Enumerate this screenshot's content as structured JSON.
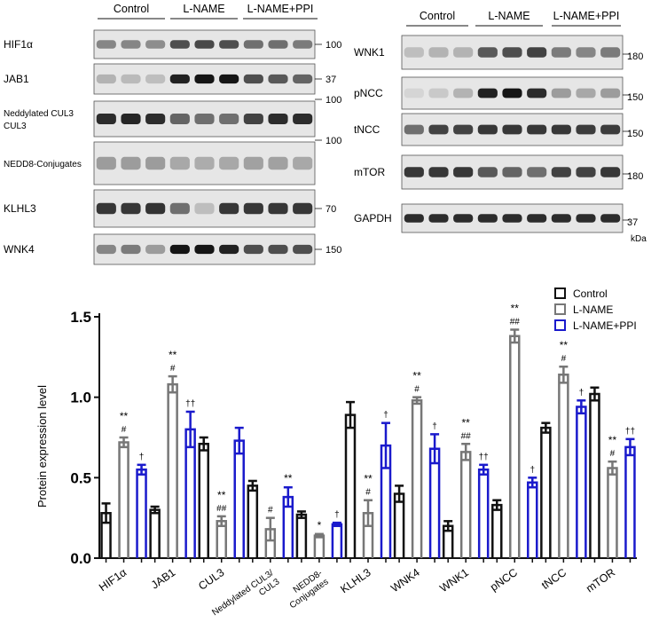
{
  "blots": {
    "left": {
      "groups": [
        "Control",
        "L-NAME",
        "L-NAME+PPI"
      ],
      "rows": [
        {
          "label": "HIF1α",
          "kda": "100",
          "intensity": [
            0.45,
            0.45,
            0.42,
            0.7,
            0.72,
            0.7,
            0.55,
            0.55,
            0.5
          ]
        },
        {
          "label": "JAB1",
          "kda": "37",
          "intensity": [
            0.25,
            0.22,
            0.2,
            0.9,
            0.95,
            0.95,
            0.7,
            0.65,
            0.6
          ]
        },
        {
          "label": "Neddylated CUL3",
          "label2": "CUL3",
          "kda": "100",
          "intensity": [
            0.85,
            0.88,
            0.85,
            0.6,
            0.55,
            0.55,
            0.75,
            0.85,
            0.85
          ]
        },
        {
          "label": "NEDD8-Conjugates",
          "kda": "100",
          "intensity": [
            0.35,
            0.35,
            0.35,
            0.3,
            0.28,
            0.3,
            0.33,
            0.33,
            0.3
          ]
        },
        {
          "label": "KLHL3",
          "kda": "70",
          "intensity": [
            0.8,
            0.8,
            0.82,
            0.55,
            0.2,
            0.8,
            0.8,
            0.8,
            0.8
          ]
        },
        {
          "label": "WNK4",
          "kda": "150",
          "intensity": [
            0.45,
            0.5,
            0.35,
            0.95,
            0.95,
            0.9,
            0.7,
            0.7,
            0.7
          ]
        }
      ]
    },
    "right": {
      "groups": [
        "Control",
        "L-NAME",
        "L-NAME+PPI"
      ],
      "rows": [
        {
          "label": "WNK1",
          "kda": "180",
          "intensity": [
            0.2,
            0.25,
            0.25,
            0.65,
            0.7,
            0.75,
            0.5,
            0.45,
            0.5
          ]
        },
        {
          "label": "pNCC",
          "kda": "150",
          "intensity": [
            0.1,
            0.15,
            0.25,
            0.9,
            0.95,
            0.85,
            0.35,
            0.3,
            0.35
          ]
        },
        {
          "label": "tNCC",
          "kda": "150",
          "intensity": [
            0.55,
            0.75,
            0.75,
            0.8,
            0.8,
            0.8,
            0.8,
            0.78,
            0.78
          ]
        },
        {
          "label": "mTOR",
          "kda": "180",
          "intensity": [
            0.8,
            0.8,
            0.8,
            0.65,
            0.6,
            0.55,
            0.75,
            0.75,
            0.8
          ]
        },
        {
          "label": "GAPDH",
          "kda": "37",
          "intensity": [
            0.85,
            0.85,
            0.85,
            0.85,
            0.85,
            0.85,
            0.85,
            0.85,
            0.85
          ]
        }
      ],
      "unit": "kDa"
    }
  },
  "chart_data": {
    "type": "bar",
    "ylabel": "Protein expression level",
    "xlabel": "",
    "ylim": [
      0,
      1.5
    ],
    "yticks": [
      "0.0",
      "0.5",
      "1.0",
      "1.5"
    ],
    "categories": [
      "HIF1α",
      "JAB1",
      "CUL3",
      "Neddylated CUL3/ CUL3",
      "NEDD8- Conjugates",
      "KLHL3",
      "WNK4",
      "WNK1",
      "pNCC",
      "tNCC",
      "mTOR"
    ],
    "series": [
      {
        "name": "Control",
        "color": "#111111",
        "values": [
          0.28,
          0.3,
          0.71,
          0.45,
          0.27,
          0.89,
          0.4,
          0.2,
          0.33,
          0.81,
          1.02
        ],
        "errors": [
          0.06,
          0.02,
          0.04,
          0.03,
          0.02,
          0.08,
          0.05,
          0.03,
          0.03,
          0.03,
          0.04
        ]
      },
      {
        "name": "L-NAME",
        "color": "#777777",
        "values": [
          0.72,
          1.08,
          0.23,
          0.18,
          0.14,
          0.28,
          0.98,
          0.66,
          1.38,
          1.14,
          0.56
        ],
        "errors": [
          0.03,
          0.05,
          0.03,
          0.07,
          0.01,
          0.08,
          0.02,
          0.05,
          0.04,
          0.05,
          0.04
        ]
      },
      {
        "name": "L-NAME+PPI",
        "color": "#1a1acc",
        "values": [
          0.55,
          0.8,
          0.73,
          0.38,
          0.21,
          0.7,
          0.68,
          0.55,
          0.47,
          0.94,
          0.69
        ],
        "errors": [
          0.03,
          0.11,
          0.08,
          0.06,
          0.01,
          0.14,
          0.09,
          0.03,
          0.03,
          0.04,
          0.05
        ]
      }
    ],
    "annotations": [
      {
        "cat": 0,
        "series": 1,
        "lines": [
          "**",
          "#"
        ]
      },
      {
        "cat": 0,
        "series": 2,
        "lines": [
          "†"
        ]
      },
      {
        "cat": 1,
        "series": 1,
        "lines": [
          "**",
          "#"
        ]
      },
      {
        "cat": 1,
        "series": 2,
        "lines": [
          "††"
        ]
      },
      {
        "cat": 2,
        "series": 1,
        "lines": [
          "**",
          "##"
        ]
      },
      {
        "cat": 3,
        "series": 1,
        "lines": [
          "#"
        ]
      },
      {
        "cat": 3,
        "series": 2,
        "lines": [
          "**"
        ]
      },
      {
        "cat": 4,
        "series": 1,
        "lines": [
          "*"
        ]
      },
      {
        "cat": 4,
        "series": 2,
        "lines": [
          "†"
        ]
      },
      {
        "cat": 5,
        "series": 1,
        "lines": [
          "**",
          "#"
        ]
      },
      {
        "cat": 5,
        "series": 2,
        "lines": [
          "†"
        ]
      },
      {
        "cat": 6,
        "series": 1,
        "lines": [
          "**",
          "#"
        ]
      },
      {
        "cat": 6,
        "series": 2,
        "lines": [
          "†"
        ]
      },
      {
        "cat": 7,
        "series": 1,
        "lines": [
          "**",
          "##"
        ]
      },
      {
        "cat": 7,
        "series": 2,
        "lines": [
          "††"
        ]
      },
      {
        "cat": 8,
        "series": 1,
        "lines": [
          "**",
          "##"
        ]
      },
      {
        "cat": 8,
        "series": 2,
        "lines": [
          "†"
        ]
      },
      {
        "cat": 9,
        "series": 1,
        "lines": [
          "**",
          "#"
        ]
      },
      {
        "cat": 9,
        "series": 2,
        "lines": [
          "†"
        ]
      },
      {
        "cat": 10,
        "series": 1,
        "lines": [
          "**",
          "#"
        ]
      },
      {
        "cat": 10,
        "series": 2,
        "lines": [
          "††"
        ]
      }
    ],
    "legend": "top-right"
  }
}
